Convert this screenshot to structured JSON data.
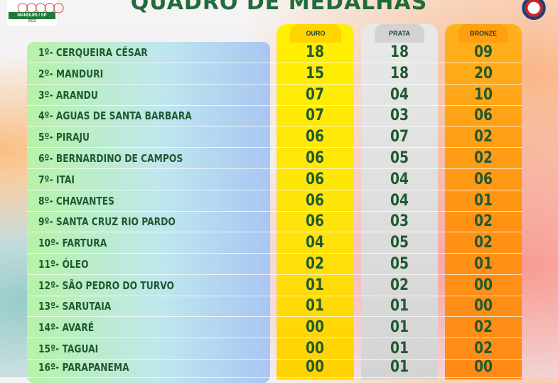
{
  "header": {
    "title": "QUADRO DE MEDALHAS",
    "logo_text": "MANDURI / SP",
    "logo_year": "2023"
  },
  "columns": {
    "gold": "OURO",
    "silver": "PRATA",
    "bronze": "BRONZE"
  },
  "colors": {
    "gold": "#ffe20c",
    "silver": "#d4d4d4",
    "bronze": "#ff9314",
    "text": "#1f5a32"
  },
  "rows": [
    {
      "rank": "1º- CERQUEIRA CÉSAR",
      "gold": "18",
      "silver": "18",
      "bronze": "09"
    },
    {
      "rank": "2º- MANDURI",
      "gold": "15",
      "silver": "18",
      "bronze": "20"
    },
    {
      "rank": "3º- ARANDU",
      "gold": "07",
      "silver": "04",
      "bronze": "10"
    },
    {
      "rank": "4º- AGUAS DE SANTA BARBARA",
      "gold": "07",
      "silver": "03",
      "bronze": "06"
    },
    {
      "rank": "5º- PIRAJU",
      "gold": "06",
      "silver": "07",
      "bronze": "02"
    },
    {
      "rank": "6º- BERNARDINO DE CAMPOS",
      "gold": "06",
      "silver": "05",
      "bronze": "02"
    },
    {
      "rank": "7º- ITAI",
      "gold": "06",
      "silver": "04",
      "bronze": "06"
    },
    {
      "rank": "8º-  CHAVANTES",
      "gold": "06",
      "silver": "04",
      "bronze": "01"
    },
    {
      "rank": "9º- SANTA CRUZ RIO PARDO",
      "gold": "06",
      "silver": "03",
      "bronze": "02"
    },
    {
      "rank": "10º- FARTURA",
      "gold": "04",
      "silver": "05",
      "bronze": "02"
    },
    {
      "rank": "11º- ÓLEO",
      "gold": "02",
      "silver": "05",
      "bronze": "01"
    },
    {
      "rank": "12º-  SÃO PEDRO DO TURVO",
      "gold": "01",
      "silver": "02",
      "bronze": "00"
    },
    {
      "rank": "13º-  SARUTAIA",
      "gold": "01",
      "silver": "01",
      "bronze": "00"
    },
    {
      "rank": "14º-  AVARÉ",
      "gold": "00",
      "silver": "01",
      "bronze": "02"
    },
    {
      "rank": "15º-  TAGUAI",
      "gold": "00",
      "silver": "01",
      "bronze": "02"
    },
    {
      "rank": "16º-  PARAPANEMA",
      "gold": "00",
      "silver": "01",
      "bronze": "00"
    }
  ]
}
